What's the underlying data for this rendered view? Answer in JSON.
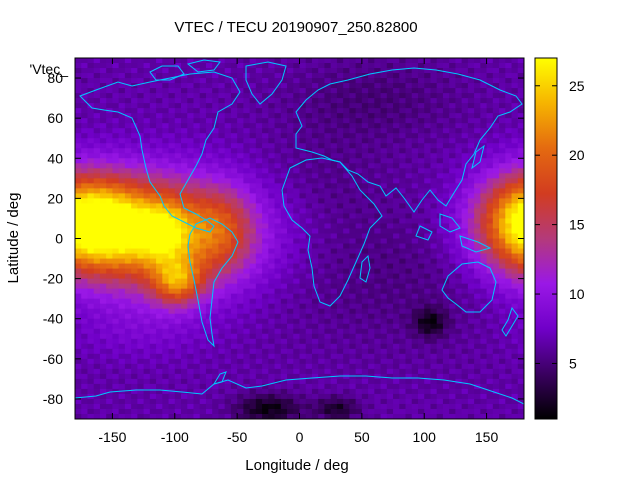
{
  "chart_data": {
    "type": "heatmap",
    "title": "VTEC / TECU 20190907_250.82800",
    "xlabel": "Longitude / deg",
    "ylabel": "Latitude / deg",
    "legend_label": "'Vtec_",
    "xlim": [
      -180,
      180
    ],
    "ylim": [
      -90,
      90
    ],
    "x_ticks": [
      -150,
      -100,
      -50,
      0,
      50,
      100,
      150
    ],
    "y_ticks": [
      -80,
      -60,
      -40,
      -20,
      0,
      20,
      40,
      60,
      80
    ],
    "grid": false,
    "colorbar": {
      "position": "right",
      "range": [
        1,
        27
      ],
      "ticks": [
        5,
        10,
        15,
        20,
        25
      ],
      "palette": [
        "#000000",
        "#3a0060",
        "#7000c8",
        "#9a18e6",
        "#b43a7a",
        "#d23c20",
        "#e46a10",
        "#f6b400",
        "#ffff00"
      ]
    },
    "cell_size_deg": {
      "lon": 5,
      "lat": 2.5
    },
    "field": {
      "background": 6.5,
      "blobs": [
        {
          "lon": -112,
          "lat": 2,
          "slon": 50,
          "slat": 19,
          "amp": 17
        },
        {
          "lon": -110,
          "lat": 3,
          "slon": 12,
          "slat": 8,
          "amp": 6
        },
        {
          "lon": -98,
          "lat": -22,
          "slon": 14,
          "slat": 8,
          "amp": 10
        },
        {
          "lon": -160,
          "lat": 10,
          "slon": 32,
          "slat": 15,
          "amp": 7
        },
        {
          "lon": -60,
          "lat": 5,
          "slon": 16,
          "slat": 14,
          "amp": 4
        },
        {
          "lon": 180,
          "lat": 8,
          "slon": 28,
          "slat": 17,
          "amp": 12
        },
        {
          "lon": -130,
          "lat": -45,
          "slon": 40,
          "slat": 10,
          "amp": 1.5
        },
        {
          "lon": 80,
          "lat": -20,
          "slon": 70,
          "slat": 25,
          "amp": -1.2
        },
        {
          "lon": 105,
          "lat": -42,
          "slon": 9,
          "slat": 5,
          "amp": -4.5
        },
        {
          "lon": -25,
          "lat": -85,
          "slon": 18,
          "slat": 5,
          "amp": -5
        },
        {
          "lon": 30,
          "lat": -85,
          "slon": 12,
          "slat": 4,
          "amp": -4
        },
        {
          "lon": 60,
          "lat": 70,
          "slon": 50,
          "slat": 15,
          "amp": -1.5
        },
        {
          "lon": 20,
          "lat": 30,
          "slon": 40,
          "slat": 20,
          "amp": -0.8
        }
      ]
    }
  },
  "colors": {
    "coastline": "#00c8ff",
    "frame": "#000000"
  }
}
